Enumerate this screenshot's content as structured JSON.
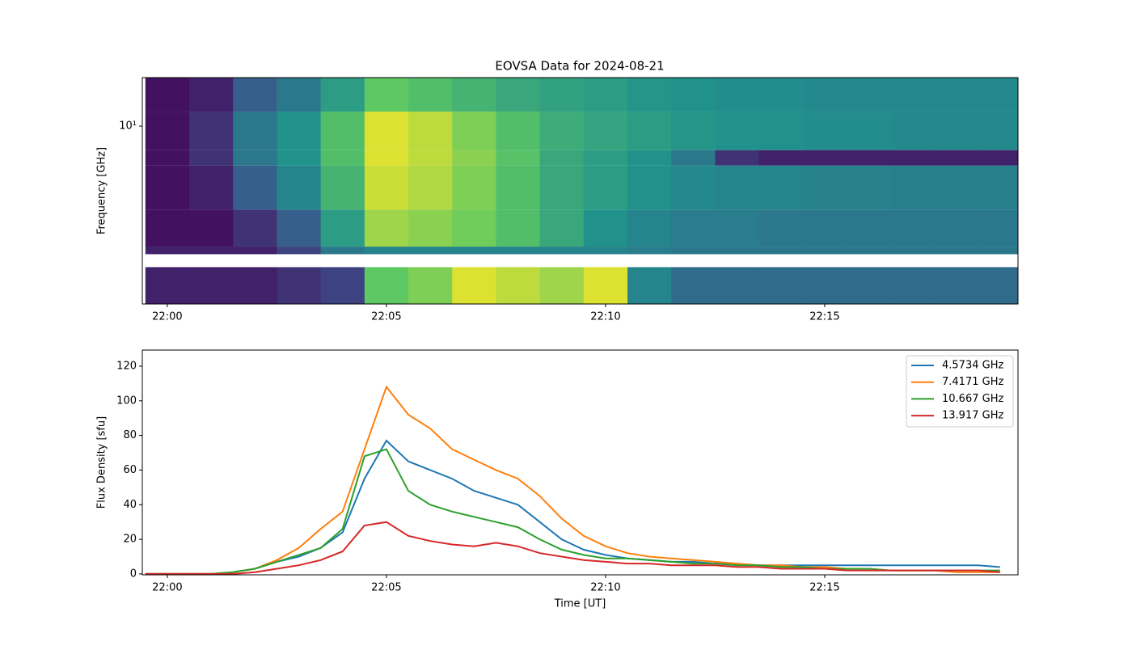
{
  "chart_data": [
    {
      "type": "heatmap",
      "title": "EOVSA Data for 2024-08-21",
      "y_label": "Frequency [GHz]",
      "x_edges": [
        -0.5,
        0.5,
        1.5,
        2.5,
        3.5,
        4.5,
        5.5,
        6.5,
        7.5,
        8.5,
        9.5,
        10.5,
        11.5,
        12.5,
        13.5,
        14.5,
        15.5,
        16.5,
        17.5,
        18.5,
        19.5
      ],
      "y_edges": [
        1.07,
        1.7,
        2.0,
        2.2,
        3.5,
        6.1,
        7.4,
        12,
        18.4
      ],
      "z": [
        [
          0.1,
          0.1,
          0.1,
          0.15,
          0.2,
          0.75,
          0.8,
          0.95,
          0.9,
          0.85,
          0.95,
          0.45,
          0.35,
          0.35,
          0.35,
          0.35,
          0.35,
          0.35,
          0.35,
          0.35
        ],
        [
          null,
          null,
          null,
          null,
          null,
          null,
          null,
          null,
          null,
          null,
          null,
          null,
          null,
          null,
          null,
          null,
          null,
          null,
          null,
          null
        ],
        [
          0.1,
          0.1,
          0.1,
          0.2,
          0.4,
          0.45,
          0.45,
          0.45,
          0.45,
          0.45,
          0.45,
          0.42,
          0.4,
          0.4,
          0.4,
          0.4,
          0.4,
          0.4,
          0.4,
          0.4
        ],
        [
          0.05,
          0.05,
          0.15,
          0.3,
          0.55,
          0.85,
          0.82,
          0.78,
          0.7,
          0.6,
          0.5,
          0.45,
          0.42,
          0.42,
          0.4,
          0.4,
          0.4,
          0.4,
          0.4,
          0.4
        ],
        [
          0.05,
          0.1,
          0.3,
          0.45,
          0.65,
          0.92,
          0.88,
          0.8,
          0.7,
          0.6,
          0.55,
          0.5,
          0.47,
          0.45,
          0.45,
          0.44,
          0.44,
          0.43,
          0.43,
          0.43
        ],
        [
          0.05,
          0.15,
          0.4,
          0.5,
          0.7,
          0.95,
          0.9,
          0.82,
          0.72,
          0.6,
          0.55,
          0.5,
          0.4,
          0.15,
          0.1,
          0.1,
          0.1,
          0.1,
          0.1,
          0.1
        ],
        [
          0.05,
          0.15,
          0.4,
          0.5,
          0.7,
          0.95,
          0.9,
          0.8,
          0.7,
          0.62,
          0.58,
          0.55,
          0.52,
          0.5,
          0.5,
          0.48,
          0.48,
          0.47,
          0.47,
          0.47
        ],
        [
          0.05,
          0.1,
          0.3,
          0.4,
          0.55,
          0.75,
          0.7,
          0.65,
          0.6,
          0.57,
          0.55,
          0.52,
          0.5,
          0.48,
          0.48,
          0.47,
          0.47,
          0.47,
          0.47,
          0.47
        ]
      ],
      "colormap": "viridis",
      "ylog": true,
      "xlim": [
        -0.57,
        19.41
      ],
      "ylim": [
        1.07,
        18.4
      ],
      "xticks": [
        {
          "value": 0,
          "label": "22:00"
        },
        {
          "value": 5,
          "label": "22:05"
        },
        {
          "value": 10,
          "label": "22:10"
        },
        {
          "value": 15,
          "label": "22:15"
        }
      ],
      "yticks": [
        {
          "value": 10,
          "label": "10¹"
        }
      ]
    },
    {
      "type": "line",
      "x_label": "Time [UT]",
      "y_label": "Flux Density [sfu]",
      "x": [
        -0.5,
        0,
        0.5,
        1,
        1.5,
        2,
        2.5,
        3,
        3.5,
        4,
        4.5,
        5,
        5.5,
        6,
        6.5,
        7,
        7.5,
        8,
        8.5,
        9,
        9.5,
        10,
        10.5,
        11,
        11.5,
        12,
        12.5,
        13,
        13.5,
        14,
        14.5,
        15,
        15.5,
        16,
        16.5,
        17,
        17.5,
        18,
        18.5,
        19
      ],
      "series": [
        {
          "name": "4.5734 GHz",
          "color": "#1f77b4",
          "values": [
            0,
            0,
            0,
            0,
            1,
            3,
            7,
            10,
            15,
            24,
            55,
            77,
            65,
            60,
            55,
            48,
            44,
            40,
            30,
            20,
            14,
            11,
            9,
            8,
            7,
            7,
            6,
            6,
            5,
            5,
            5,
            5,
            5,
            5,
            5,
            5,
            5,
            5,
            5,
            4
          ]
        },
        {
          "name": "7.4171 GHz",
          "color": "#ff7f0e",
          "values": [
            0,
            0,
            0,
            0,
            1,
            3,
            8,
            15,
            26,
            36,
            72,
            108,
            92,
            84,
            72,
            66,
            60,
            55,
            45,
            32,
            22,
            16,
            12,
            10,
            9,
            8,
            7,
            6,
            5,
            5,
            4,
            4,
            3,
            3,
            2,
            2,
            2,
            1,
            1,
            1
          ]
        },
        {
          "name": "10.667 GHz",
          "color": "#2ca02c",
          "values": [
            0,
            0,
            0,
            0,
            1,
            3,
            7,
            11,
            15,
            26,
            68,
            72,
            48,
            40,
            36,
            33,
            30,
            27,
            20,
            14,
            11,
            9,
            9,
            8,
            7,
            6,
            6,
            5,
            5,
            4,
            4,
            3,
            3,
            3,
            2,
            2,
            2,
            2,
            2,
            2
          ]
        },
        {
          "name": "13.917 GHz",
          "color": "#d62728",
          "values": [
            0,
            0,
            0,
            0,
            0,
            1,
            3,
            5,
            8,
            13,
            28,
            30,
            22,
            19,
            17,
            16,
            18,
            16,
            12,
            10,
            8,
            7,
            6,
            6,
            5,
            5,
            5,
            4,
            4,
            3,
            3,
            3,
            2,
            2,
            2,
            2,
            2,
            2,
            2,
            1
          ]
        }
      ],
      "xlim": [
        -0.57,
        19.41
      ],
      "ylim": [
        -0.5,
        129.3
      ],
      "xticks": [
        {
          "value": 0,
          "label": "22:00"
        },
        {
          "value": 5,
          "label": "22:05"
        },
        {
          "value": 10,
          "label": "22:10"
        },
        {
          "value": 15,
          "label": "22:15"
        }
      ],
      "yticks": [
        0,
        20,
        40,
        60,
        80,
        100,
        120
      ],
      "legend": "upper right"
    }
  ]
}
